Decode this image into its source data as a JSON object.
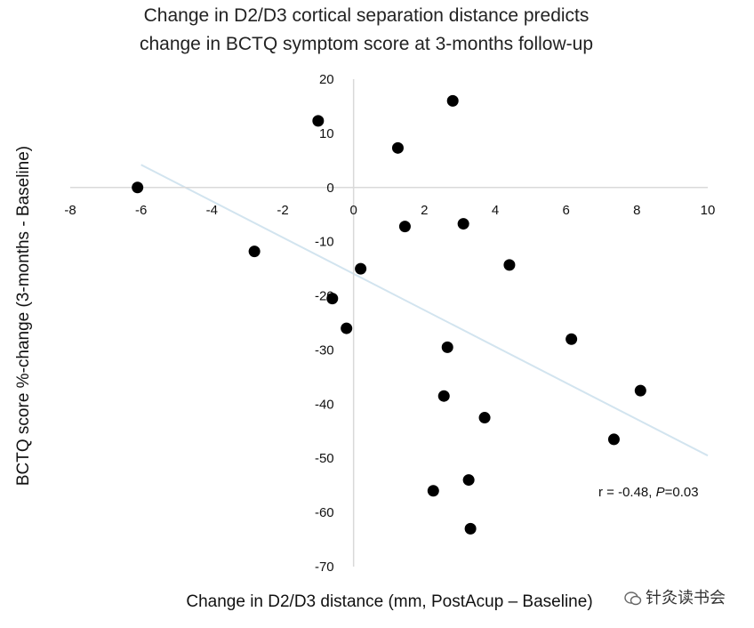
{
  "chart_data": {
    "type": "scatter",
    "title_lines": [
      "Change in D2/D3 cortical separation distance predicts",
      "change in BCTQ symptom score at 3-months follow-up"
    ],
    "xlabel": "Change in D2/D3 distance (mm, PostAcup – Baseline)",
    "ylabel": "BCTQ score %-change (3-months - Baseline)",
    "xlim": [
      -8,
      10
    ],
    "ylim": [
      -70,
      20
    ],
    "x_ticks": [
      -8,
      -6,
      -4,
      -2,
      0,
      2,
      4,
      6,
      8,
      10
    ],
    "y_ticks": [
      20,
      10,
      0,
      -10,
      -20,
      -30,
      -40,
      -50,
      -60,
      -70
    ],
    "grid": false,
    "points": [
      {
        "x": -6.1,
        "y": 0
      },
      {
        "x": -2.8,
        "y": -11.8
      },
      {
        "x": -1.0,
        "y": 12.3
      },
      {
        "x": -0.6,
        "y": -20.5
      },
      {
        "x": -0.2,
        "y": -26
      },
      {
        "x": 0.2,
        "y": -15
      },
      {
        "x": 1.25,
        "y": 7.3
      },
      {
        "x": 1.45,
        "y": -7.2
      },
      {
        "x": 2.25,
        "y": -56
      },
      {
        "x": 2.55,
        "y": -38.5
      },
      {
        "x": 2.65,
        "y": -29.5
      },
      {
        "x": 2.8,
        "y": 16
      },
      {
        "x": 3.1,
        "y": -6.7
      },
      {
        "x": 3.25,
        "y": -54
      },
      {
        "x": 3.3,
        "y": -63
      },
      {
        "x": 3.7,
        "y": -42.5
      },
      {
        "x": 4.4,
        "y": -14.3
      },
      {
        "x": 6.15,
        "y": -28
      },
      {
        "x": 7.35,
        "y": -46.5
      },
      {
        "x": 8.1,
        "y": -37.5
      }
    ],
    "trendline": {
      "x": [
        -6,
        10
      ],
      "y": [
        4.2,
        -49.5
      ]
    },
    "annotation": {
      "prefix": "r = -0.48, ",
      "p_label": "P",
      "p_value": "=0.03"
    },
    "colors": {
      "point": "#000000",
      "trendline": "#d2e4ef",
      "axis": "#d9d9d9"
    }
  },
  "watermark": {
    "text": "针灸读书会",
    "icon": "wechat-icon"
  }
}
